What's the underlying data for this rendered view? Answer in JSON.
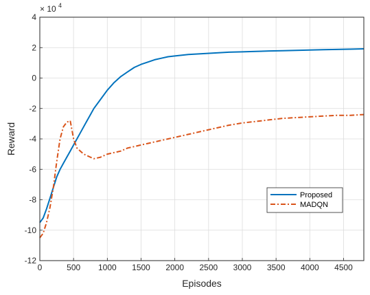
{
  "chart_data": {
    "type": "line",
    "xlabel": "Episodes",
    "ylabel": "Reward",
    "y_exponent_base": "× 10",
    "y_exponent": "4",
    "xlim": [
      0,
      4800
    ],
    "ylim": [
      -12,
      4
    ],
    "x_ticks": [
      0,
      500,
      1000,
      1500,
      2000,
      2500,
      3000,
      3500,
      4000,
      4500
    ],
    "y_ticks": [
      -12,
      -10,
      -8,
      -6,
      -4,
      -2,
      0,
      2,
      4
    ],
    "grid": true,
    "legend_position": "lower-right",
    "series": [
      {
        "name": "Proposed",
        "color": "#0072BD",
        "style": "solid",
        "x": [
          0,
          50,
          100,
          150,
          200,
          250,
          300,
          350,
          400,
          450,
          500,
          550,
          600,
          650,
          700,
          750,
          800,
          900,
          1000,
          1100,
          1200,
          1300,
          1400,
          1500,
          1600,
          1700,
          1800,
          1900,
          2000,
          2200,
          2400,
          2600,
          2800,
          3000,
          3200,
          3400,
          3600,
          3800,
          4000,
          4200,
          4400,
          4600,
          4800
        ],
        "y": [
          -9.5,
          -9.2,
          -8.6,
          -7.9,
          -7.2,
          -6.5,
          -6.0,
          -5.6,
          -5.2,
          -4.8,
          -4.4,
          -4.0,
          -3.6,
          -3.2,
          -2.8,
          -2.4,
          -2.0,
          -1.4,
          -0.8,
          -0.3,
          0.1,
          0.4,
          0.7,
          0.9,
          1.05,
          1.2,
          1.3,
          1.4,
          1.45,
          1.55,
          1.6,
          1.65,
          1.7,
          1.72,
          1.75,
          1.78,
          1.8,
          1.82,
          1.84,
          1.86,
          1.88,
          1.9,
          1.92
        ]
      },
      {
        "name": "MADQN",
        "color": "#D95319",
        "style": "dash-dot",
        "x": [
          0,
          50,
          100,
          150,
          200,
          250,
          300,
          350,
          400,
          450,
          500,
          550,
          600,
          650,
          700,
          750,
          800,
          900,
          1000,
          1100,
          1200,
          1300,
          1400,
          1500,
          1600,
          1700,
          1800,
          1900,
          2000,
          2200,
          2400,
          2600,
          2800,
          3000,
          3200,
          3400,
          3600,
          3800,
          4000,
          4200,
          4400,
          4600,
          4800
        ],
        "y": [
          -10.5,
          -10.2,
          -9.5,
          -8.5,
          -7.2,
          -5.5,
          -4.0,
          -3.2,
          -2.9,
          -2.8,
          -4.0,
          -4.6,
          -4.8,
          -5.0,
          -5.1,
          -5.2,
          -5.3,
          -5.2,
          -5.0,
          -4.9,
          -4.8,
          -4.6,
          -4.5,
          -4.4,
          -4.3,
          -4.2,
          -4.1,
          -4.0,
          -3.9,
          -3.7,
          -3.5,
          -3.3,
          -3.1,
          -2.95,
          -2.85,
          -2.75,
          -2.65,
          -2.6,
          -2.55,
          -2.5,
          -2.45,
          -2.45,
          -2.4
        ]
      }
    ]
  }
}
